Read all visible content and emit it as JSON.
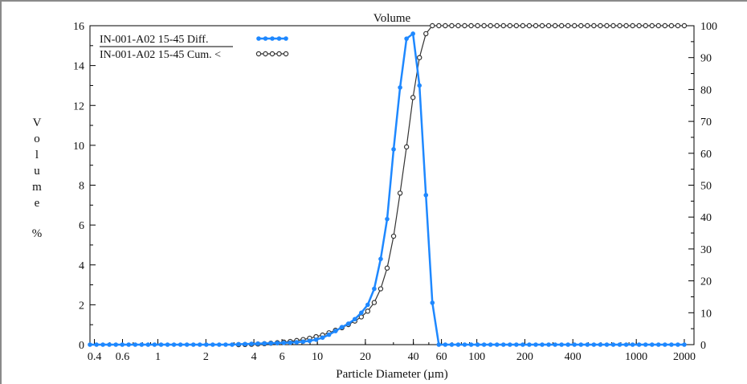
{
  "chart_data": {
    "type": "line",
    "title": "Volume",
    "xlabel": "Particle Diameter (µm)",
    "ylabel_chars": [
      "V",
      "o",
      "l",
      "u",
      "m",
      "e",
      "%"
    ],
    "x_scale": "log",
    "xlim": [
      0.375,
      2300
    ],
    "ylim_left": [
      0,
      16
    ],
    "ylim_right": [
      0,
      100
    ],
    "x_ticks": [
      0.4,
      0.6,
      1,
      2,
      4,
      6,
      10,
      20,
      40,
      60,
      100,
      200,
      400,
      1000,
      2000
    ],
    "x_tick_labels": [
      "0.4",
      "0.6",
      "1",
      "2",
      "4",
      "6",
      "10",
      "20",
      "40",
      "60",
      "100",
      "200",
      "400",
      "1000",
      "2000"
    ],
    "y_left_ticks": [
      0,
      2,
      4,
      6,
      8,
      10,
      12,
      14,
      16
    ],
    "y_left_tick_labels": [
      "0",
      "2",
      "4",
      "6",
      "8",
      "10",
      "12",
      "14",
      "16"
    ],
    "y_right_ticks": [
      0,
      10,
      20,
      30,
      40,
      50,
      60,
      70,
      80,
      90,
      100
    ],
    "y_right_tick_labels": [
      "0",
      "10",
      "20",
      "30",
      "40",
      "50",
      "60",
      "70",
      "80",
      "90",
      "100"
    ],
    "legend_placement": "top-left",
    "grid": false,
    "series": [
      {
        "name": "IN-001-A02 15-45 Diff.",
        "axis": "left",
        "color": "#1e88ff",
        "marker": "filled-circle",
        "x": [
          0.375,
          0.412,
          0.452,
          0.496,
          0.545,
          0.598,
          0.656,
          0.721,
          0.791,
          0.868,
          0.953,
          1.047,
          1.149,
          1.261,
          1.385,
          1.52,
          1.669,
          1.832,
          2.011,
          2.208,
          2.423,
          2.66,
          2.92,
          3.206,
          3.519,
          3.863,
          4.24,
          4.655,
          5.11,
          5.61,
          6.158,
          6.76,
          7.421,
          8.147,
          8.943,
          9.817,
          10.78,
          11.83,
          12.99,
          14.26,
          15.65,
          17.18,
          18.86,
          20.7,
          22.73,
          24.95,
          27.39,
          30.07,
          33.01,
          36.24,
          39.78,
          43.67,
          47.94,
          52.62,
          57.77,
          63.41,
          69.61,
          76.42,
          83.89,
          92.09,
          101.1,
          111.0,
          121.8,
          133.7,
          146.8,
          161.2,
          176.9,
          194.2,
          213.2,
          234.1,
          256.9,
          282.1,
          309.6,
          339.9,
          373.1,
          409.6,
          449.7,
          493.6,
          541.9,
          594.9,
          653.0,
          716.8,
          786.9,
          863.9,
          948.3,
          1041,
          1143,
          1255,
          1377,
          1512,
          1660,
          1822,
          2000
        ],
        "y": [
          0,
          0,
          0,
          0,
          0,
          0,
          0,
          0,
          0,
          0,
          0,
          0,
          0,
          0,
          0,
          0,
          0,
          0,
          0,
          0,
          0,
          0,
          0,
          0.02,
          0.03,
          0.04,
          0.05,
          0.06,
          0.07,
          0.08,
          0.09,
          0.1,
          0.12,
          0.15,
          0.19,
          0.25,
          0.35,
          0.5,
          0.68,
          0.88,
          1.05,
          1.28,
          1.6,
          2.0,
          2.8,
          4.3,
          6.3,
          9.8,
          12.9,
          15.35,
          15.6,
          13.0,
          7.5,
          2.1,
          0,
          0,
          0,
          0,
          0,
          0,
          0,
          0,
          0,
          0,
          0,
          0,
          0,
          0,
          0,
          0,
          0,
          0,
          0,
          0,
          0,
          0,
          0,
          0,
          0,
          0,
          0,
          0,
          0,
          0,
          0,
          0,
          0,
          0,
          0,
          0,
          0,
          0,
          0
        ]
      },
      {
        "name": "IN-001-A02 15-45 Cum. <",
        "axis": "right",
        "color": "#333333",
        "marker": "open-circle",
        "x": [
          3.206,
          3.519,
          3.863,
          4.24,
          4.655,
          5.11,
          5.61,
          6.158,
          6.76,
          7.421,
          8.147,
          8.943,
          9.817,
          10.78,
          11.83,
          12.99,
          14.26,
          15.65,
          17.18,
          18.86,
          20.7,
          22.73,
          24.95,
          27.39,
          30.07,
          33.01,
          36.24,
          39.78,
          43.67,
          47.94,
          52.62,
          57.77,
          63.41,
          69.61,
          76.42,
          83.89,
          92.09,
          101.1,
          111.0,
          121.8,
          133.7,
          146.8,
          161.2,
          176.9,
          194.2,
          213.2,
          234.1,
          256.9,
          282.1,
          309.6,
          339.9,
          373.1,
          409.6,
          449.7,
          493.6,
          541.9,
          594.9,
          653.0,
          716.8,
          786.9,
          863.9,
          948.3,
          1041,
          1143,
          1255,
          1377,
          1512,
          1660,
          1822,
          2000
        ],
        "y": [
          0,
          0.05,
          0.1,
          0.2,
          0.3,
          0.45,
          0.6,
          0.8,
          1.0,
          1.3,
          1.6,
          2.0,
          2.5,
          3.0,
          3.7,
          4.5,
          5.3,
          6.3,
          7.4,
          8.7,
          10.5,
          13.2,
          17.5,
          24.0,
          34.0,
          47.5,
          62.0,
          77.5,
          90.0,
          97.5,
          100,
          100,
          100,
          100,
          100,
          100,
          100,
          100,
          100,
          100,
          100,
          100,
          100,
          100,
          100,
          100,
          100,
          100,
          100,
          100,
          100,
          100,
          100,
          100,
          100,
          100,
          100,
          100,
          100,
          100,
          100,
          100,
          100,
          100,
          100,
          100,
          100,
          100,
          100,
          100
        ]
      }
    ]
  }
}
